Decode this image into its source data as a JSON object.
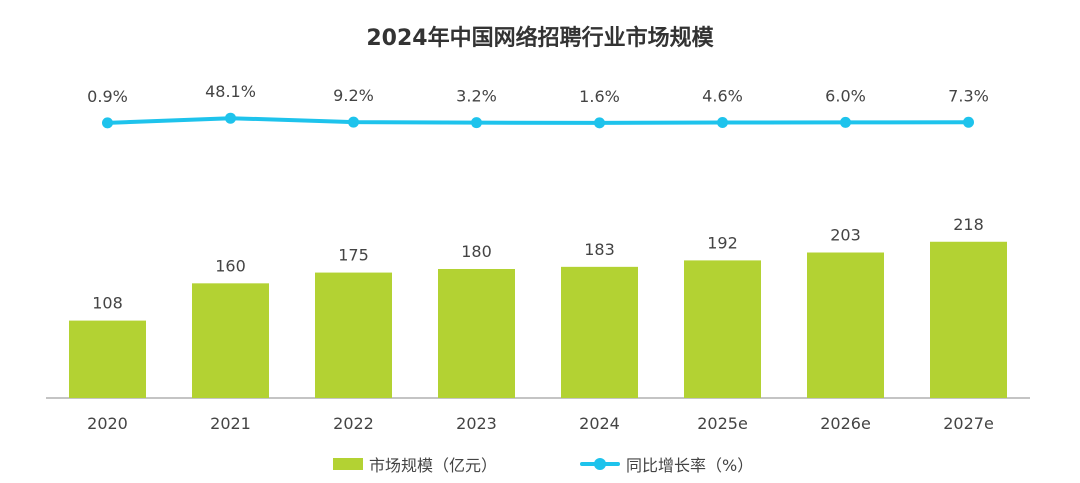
{
  "chart_data": {
    "type": "bar",
    "title": "2024年中国网络招聘行业市场规模",
    "categories": [
      "2020",
      "2021",
      "2022",
      "2023",
      "2024",
      "2025e",
      "2026e",
      "2027e"
    ],
    "series": [
      {
        "name": "市场规模（亿元）",
        "type": "bar",
        "values": [
          108,
          160,
          175,
          180,
          183,
          192,
          203,
          218
        ],
        "labels": [
          "108",
          "160",
          "175",
          "180",
          "183",
          "192",
          "203",
          "218"
        ]
      },
      {
        "name": "同比增长率（%）",
        "type": "line",
        "values": [
          0.9,
          48.1,
          9.2,
          3.2,
          1.6,
          4.6,
          6.0,
          7.3
        ],
        "labels": [
          "0.9%",
          "48.1%",
          "9.2%",
          "3.2%",
          "1.6%",
          "4.6%",
          "6.0%",
          "7.3%"
        ]
      }
    ],
    "legend_position": "bottom",
    "grid": false
  },
  "colors": {
    "bar": "#b3d233",
    "line": "#1ec3ec",
    "axis": "#888888",
    "text": "#444444",
    "title": "#333333"
  }
}
